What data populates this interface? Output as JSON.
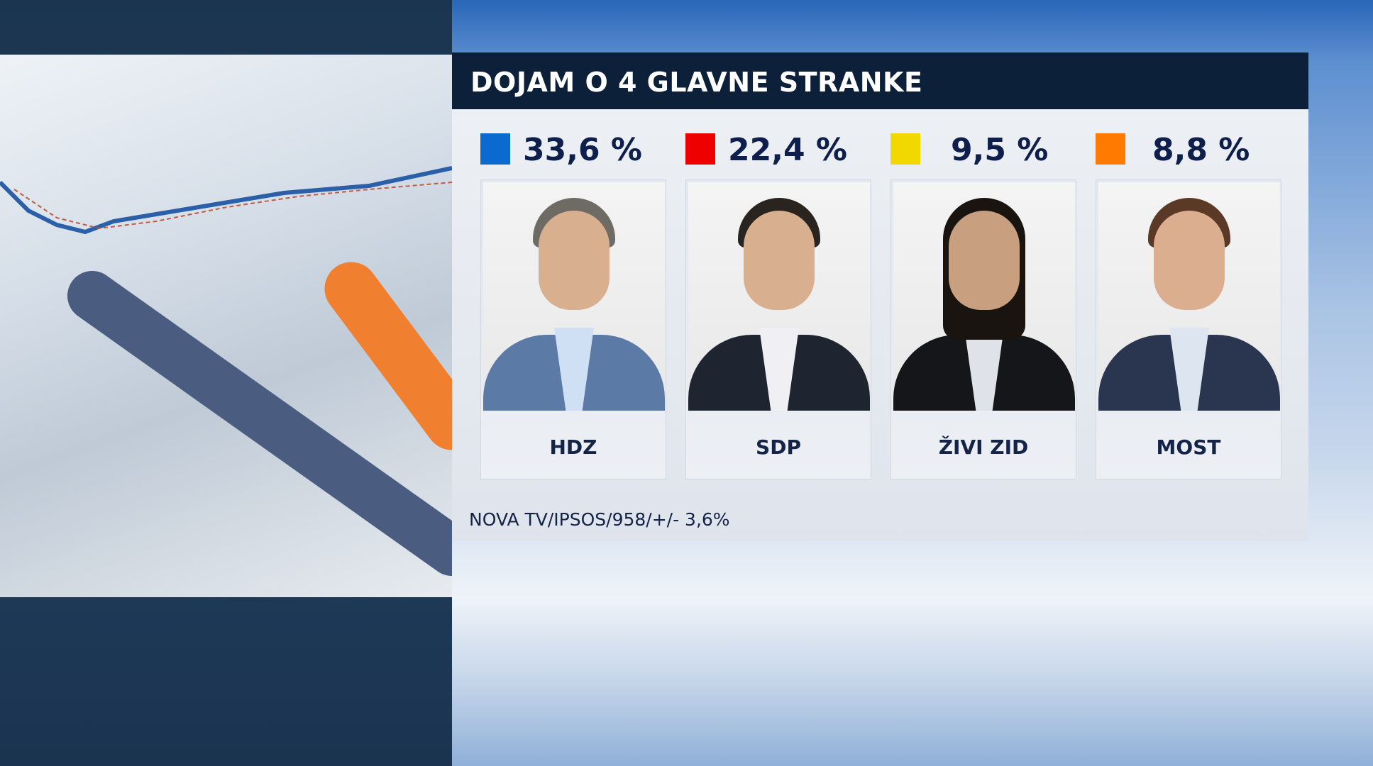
{
  "title": "DOJAM O 4 GLAVNE STRANKE",
  "source": "NOVA TV/IPSOS/958/+/- 3,6%",
  "chart_data": {
    "type": "table",
    "title": "DOJAM O 4 GLAVNE STRANKE",
    "categories": [
      "HDZ",
      "SDP",
      "ŽIVI ZID",
      "MOST"
    ],
    "values": [
      33.6,
      22.4,
      9.5,
      8.8
    ],
    "labels": [
      "33,6 %",
      "22,4 %",
      "9,5 %",
      "8,8 %"
    ],
    "colors": [
      "#0a6ad0",
      "#ee0000",
      "#f0d800",
      "#ff7a00"
    ]
  }
}
